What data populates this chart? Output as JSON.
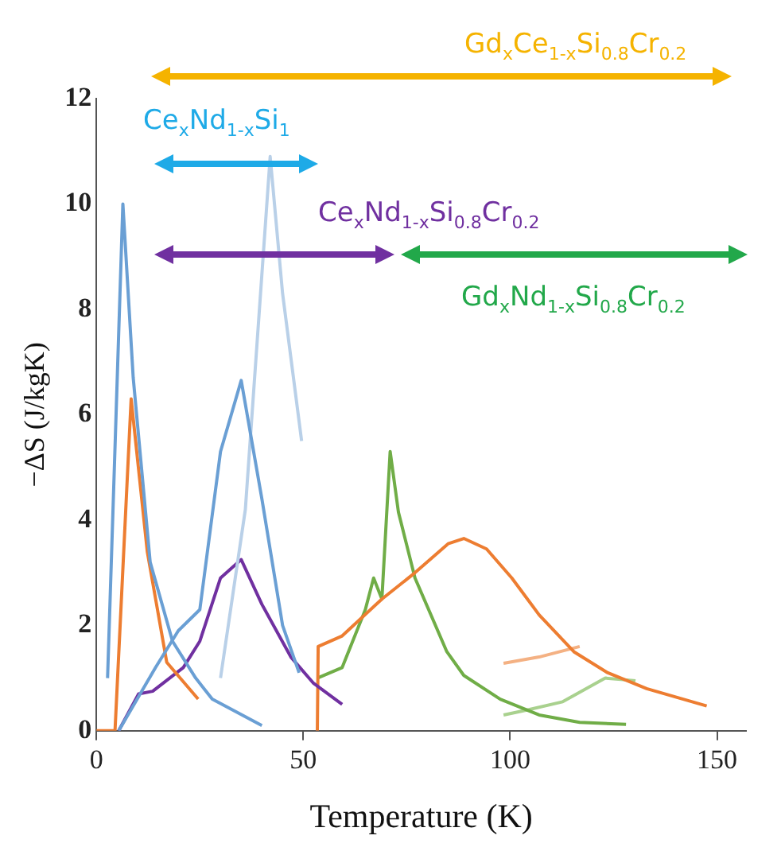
{
  "chart_data": {
    "type": "line",
    "xlabel": "Temperature (K)",
    "ylabel": "−ΔS (J/kgK)",
    "xlim": [
      0,
      157
    ],
    "xticks": [
      0,
      50,
      100,
      150
    ],
    "ylim": [
      0,
      12
    ],
    "yticks": [
      0,
      2,
      4,
      6,
      8,
      10,
      12
    ],
    "grid": false,
    "legend": false,
    "marker": "none",
    "line_style": "solid",
    "annotations": [
      "Gd$_{x}$Ce$_{1-x}$Si$_{0.8}$Cr$_{0.2}$",
      "Ce$_{x}$Nd$_{1-x}$Si$_{1}$",
      "Ce$_{x}$Nd$_{1-x}$Si$_{0.8}$Cr$_{0.2}$",
      "Gd$_{x}$Nd$_{1-x}$Si$_{0.8}$Cr$_{0.2}$"
    ],
    "series": [
      {
        "color": "#6a9fd4",
        "x": [
          2.7,
          6.4,
          8.9,
          13,
          18.4,
          24,
          28,
          40
        ],
        "values": [
          1.0,
          10.0,
          6.7,
          3.2,
          1.7,
          1.0,
          0.6,
          0.1
        ]
      },
      {
        "color": "#6a9fd4",
        "x": [
          5.4,
          14.3,
          19.8,
          25,
          30,
          35,
          40,
          45,
          49
        ],
        "values": [
          0,
          1.2,
          1.9,
          2.3,
          5.3,
          6.65,
          4.4,
          2.0,
          1.1
        ]
      },
      {
        "color": "#b9d0e8",
        "x": [
          30,
          36,
          42,
          45,
          49.6
        ],
        "values": [
          1.0,
          4.2,
          10.9,
          8.3,
          5.5
        ]
      },
      {
        "color": "#ed7d31",
        "x": [
          0,
          4.5,
          8.4,
          12.3,
          17,
          24.6
        ],
        "values": [
          0,
          0,
          6.3,
          3.4,
          1.3,
          0.6
        ]
      },
      {
        "color": "#7030a0",
        "x": [
          5.4,
          10.2,
          13.6,
          21,
          25,
          30,
          35,
          40,
          47,
          52.5,
          59.4
        ],
        "values": [
          0,
          0.7,
          0.75,
          1.2,
          1.7,
          2.9,
          3.25,
          2.4,
          1.4,
          0.9,
          0.5
        ]
      },
      {
        "color": "#ed7d31",
        "x": [
          53.4,
          53.6,
          59.4,
          69,
          77,
          85,
          88.8,
          94.3,
          100.4,
          107,
          115.4,
          123.6,
          133,
          147.5
        ],
        "values": [
          0,
          1.6,
          1.8,
          2.5,
          3.0,
          3.55,
          3.65,
          3.45,
          2.9,
          2.2,
          1.5,
          1.1,
          0.8,
          0.47
        ]
      },
      {
        "color": "#70ad47",
        "x": [
          53.4,
          59.4,
          65,
          67,
          69,
          71,
          73,
          77,
          84.7,
          88.8,
          97.6,
          107,
          116.8,
          128
        ],
        "values": [
          1.0,
          1.2,
          2.3,
          2.9,
          2.5,
          5.3,
          4.15,
          2.9,
          1.5,
          1.05,
          0.6,
          0.3,
          0.16,
          0.12
        ]
      },
      {
        "color": "#f4b183",
        "x": [
          98.4,
          107,
          116.8
        ],
        "values": [
          1.28,
          1.4,
          1.6
        ]
      },
      {
        "color": "#a9d18e",
        "x": [
          98.4,
          104.5,
          112.7,
          123,
          130.3
        ],
        "values": [
          0.3,
          0.4,
          0.55,
          1.0,
          0.95
        ]
      }
    ]
  }
}
